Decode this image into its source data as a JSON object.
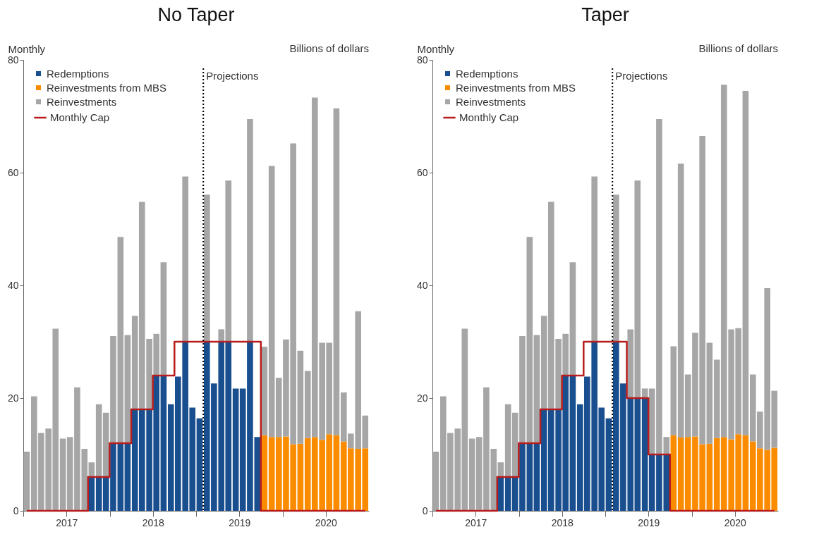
{
  "chart_data": [
    {
      "type": "bar",
      "title": "No Taper",
      "ylabel": "Monthly",
      "annotations": [
        "Billions of dollars"
      ],
      "x": [
        "2017-01-16",
        "2017-02-15",
        "2017-03-16",
        "2017-04-16",
        "2017-05-16",
        "2017-06-16",
        "2017-07-16",
        "2017-08-16",
        "2017-09-16",
        "2017-10-16",
        "2017-11-16",
        "2017-12-16",
        "2018-01-16",
        "2018-02-15",
        "2018-03-16",
        "2018-04-16",
        "2018-05-16",
        "2018-06-16",
        "2018-07-16",
        "2018-08-16",
        "2018-09-16",
        "2018-10-16",
        "2018-11-16",
        "2018-12-16",
        "2019-01-16",
        "2019-02-15",
        "2019-03-16",
        "2019-04-16",
        "2019-05-16",
        "2019-06-16",
        "2019-07-16",
        "2019-08-16",
        "2019-09-16",
        "2019-10-16",
        "2019-11-16",
        "2019-12-16",
        "2020-01-16",
        "2020-02-15",
        "2020-03-16",
        "2020-04-16",
        "2020-05-16",
        "2020-06-16",
        "2020-07-16",
        "2020-08-16",
        "2020-09-16",
        "2020-10-16",
        "2020-11-16",
        "2020-12-16"
      ],
      "xlim": [
        "2017-01",
        "2021-01"
      ],
      "xticks": [
        {
          "value": "2017-01",
          "label": null
        },
        {
          "value": "2017-07",
          "label": "2017"
        },
        {
          "value": "2018-01",
          "label": null
        },
        {
          "value": "2018-07",
          "label": "2018"
        },
        {
          "value": "2019-01",
          "label": null
        },
        {
          "value": "2019-07",
          "label": "2019"
        },
        {
          "value": "2020-01",
          "label": null
        },
        {
          "value": "2020-07",
          "label": "2020"
        }
      ],
      "ylim": [
        0,
        80
      ],
      "yticks": [
        0,
        20,
        40,
        60,
        80
      ],
      "stacked": true,
      "legend": "top left",
      "ref_lines": [
        {
          "axis": "x",
          "value": "2019-02",
          "label": "Projections",
          "color": "#000000",
          "line_style": "dotted"
        }
      ],
      "series": [
        {
          "name": "Redemptions",
          "color": "#1a4f8f",
          "values": [
            null,
            null,
            null,
            null,
            null,
            null,
            null,
            null,
            null,
            6,
            6,
            6,
            12,
            12,
            12,
            18,
            18,
            18,
            24,
            24,
            18.9,
            23.8,
            30,
            18.3,
            16.4,
            30,
            22.6,
            30,
            30,
            21.7,
            21.7,
            30,
            13.1,
            null,
            null,
            null,
            null,
            null,
            null,
            null,
            null,
            null,
            null,
            null,
            null,
            null,
            null,
            null
          ]
        },
        {
          "name": "Reinvestments from MBS",
          "color": "#fb8c00",
          "values": [
            null,
            null,
            null,
            null,
            null,
            null,
            null,
            null,
            null,
            null,
            null,
            null,
            null,
            null,
            null,
            null,
            null,
            null,
            null,
            null,
            null,
            null,
            null,
            null,
            null,
            null,
            null,
            null,
            null,
            null,
            null,
            null,
            null,
            13.4,
            13.1,
            13.1,
            13.2,
            11.8,
            11.9,
            12.9,
            13.1,
            12.6,
            13.6,
            13.4,
            12.3,
            11.1,
            11.0,
            11.1
          ]
        },
        {
          "name": "Reinvestments",
          "color": "#a6a6a6",
          "values": [
            10.5,
            20.3,
            13.8,
            14.6,
            32.3,
            12.8,
            13.1,
            21.9,
            11.0,
            2.6,
            12.9,
            11.4,
            19.0,
            36.6,
            19.2,
            16.6,
            36.8,
            12.5,
            7.4,
            20.1,
            null,
            null,
            29.3,
            null,
            null,
            26.1,
            null,
            2.2,
            28.6,
            null,
            null,
            39.5,
            null,
            15.7,
            48.1,
            10.5,
            17.2,
            53.4,
            16.5,
            11.9,
            60.2,
            17.2,
            16.2,
            58.0,
            8.7,
            2.6,
            24.4,
            5.8
          ]
        },
        {
          "name": "Monthly Cap",
          "type": "step",
          "color": "#b81c1c",
          "values": [
            0,
            0,
            0,
            0,
            0,
            0,
            0,
            0,
            0,
            6,
            6,
            6,
            12,
            12,
            12,
            18,
            18,
            18,
            24,
            24,
            24,
            30,
            30,
            30,
            30,
            30,
            30,
            30,
            30,
            30,
            30,
            30,
            30,
            0,
            0,
            0,
            0,
            0,
            0,
            0,
            0,
            0,
            0,
            0,
            0,
            0,
            0,
            0
          ]
        }
      ]
    },
    {
      "type": "bar",
      "title": "Taper",
      "ylabel": "Monthly",
      "annotations": [
        "Billions of dollars"
      ],
      "x": [
        "2017-01-16",
        "2017-02-15",
        "2017-03-16",
        "2017-04-16",
        "2017-05-16",
        "2017-06-16",
        "2017-07-16",
        "2017-08-16",
        "2017-09-16",
        "2017-10-16",
        "2017-11-16",
        "2017-12-16",
        "2018-01-16",
        "2018-02-15",
        "2018-03-16",
        "2018-04-16",
        "2018-05-16",
        "2018-06-16",
        "2018-07-16",
        "2018-08-16",
        "2018-09-16",
        "2018-10-16",
        "2018-11-16",
        "2018-12-16",
        "2019-01-16",
        "2019-02-15",
        "2019-03-16",
        "2019-04-16",
        "2019-05-16",
        "2019-06-16",
        "2019-07-16",
        "2019-08-16",
        "2019-09-16",
        "2019-10-16",
        "2019-11-16",
        "2019-12-16",
        "2020-01-16",
        "2020-02-15",
        "2020-03-16",
        "2020-04-16",
        "2020-05-16",
        "2020-06-16",
        "2020-07-16",
        "2020-08-16",
        "2020-09-16",
        "2020-10-16",
        "2020-11-16",
        "2020-12-16"
      ],
      "xlim": [
        "2017-01",
        "2021-01"
      ],
      "xticks": [
        {
          "value": "2017-01",
          "label": null
        },
        {
          "value": "2017-07",
          "label": "2017"
        },
        {
          "value": "2018-01",
          "label": null
        },
        {
          "value": "2018-07",
          "label": "2018"
        },
        {
          "value": "2019-01",
          "label": null
        },
        {
          "value": "2019-07",
          "label": "2019"
        },
        {
          "value": "2020-01",
          "label": null
        },
        {
          "value": "2020-07",
          "label": "2020"
        }
      ],
      "ylim": [
        0,
        80
      ],
      "yticks": [
        0,
        20,
        40,
        60,
        80
      ],
      "stacked": true,
      "legend": "top left",
      "ref_lines": [
        {
          "axis": "x",
          "value": "2019-02",
          "label": "Projections",
          "color": "#000000",
          "line_style": "dotted"
        }
      ],
      "series": [
        {
          "name": "Redemptions",
          "color": "#1a4f8f",
          "values": [
            null,
            null,
            null,
            null,
            null,
            null,
            null,
            null,
            null,
            6,
            6,
            6,
            12,
            12,
            12,
            18,
            18,
            18,
            24,
            24,
            18.9,
            23.8,
            30,
            18.3,
            16.4,
            30,
            22.6,
            20,
            20,
            20,
            10,
            10,
            10,
            null,
            null,
            null,
            null,
            null,
            null,
            null,
            null,
            null,
            null,
            null,
            null,
            null,
            null,
            null
          ]
        },
        {
          "name": "Reinvestments from MBS",
          "color": "#fb8c00",
          "values": [
            null,
            null,
            null,
            null,
            null,
            null,
            null,
            null,
            null,
            null,
            null,
            null,
            null,
            null,
            null,
            null,
            null,
            null,
            null,
            null,
            null,
            null,
            null,
            null,
            null,
            null,
            null,
            null,
            null,
            null,
            null,
            null,
            null,
            13.4,
            13.0,
            13.1,
            13.2,
            11.8,
            11.9,
            12.9,
            13.1,
            12.7,
            13.6,
            13.4,
            12.3,
            11.1,
            10.8,
            11.2
          ]
        },
        {
          "name": "Reinvestments",
          "color": "#a6a6a6",
          "values": [
            10.5,
            20.3,
            13.8,
            14.6,
            32.3,
            12.8,
            13.1,
            21.9,
            11.0,
            2.6,
            12.9,
            11.4,
            19.0,
            36.6,
            19.2,
            16.6,
            36.8,
            12.5,
            7.4,
            20.1,
            null,
            null,
            29.3,
            null,
            null,
            26.1,
            null,
            12.2,
            38.6,
            1.7,
            11.7,
            59.5,
            3.1,
            15.8,
            48.6,
            11.1,
            18.4,
            54.7,
            17.9,
            13.9,
            62.5,
            19.5,
            18.8,
            61.1,
            11.9,
            6.5,
            28.7,
            10.1
          ]
        },
        {
          "name": "Monthly Cap",
          "type": "step",
          "color": "#b81c1c",
          "values": [
            0,
            0,
            0,
            0,
            0,
            0,
            0,
            0,
            0,
            6,
            6,
            6,
            12,
            12,
            12,
            18,
            18,
            18,
            24,
            24,
            24,
            30,
            30,
            30,
            30,
            30,
            30,
            20,
            20,
            20,
            10,
            10,
            10,
            0,
            0,
            0,
            0,
            0,
            0,
            0,
            0,
            0,
            0,
            0,
            0,
            0,
            0,
            0
          ]
        }
      ]
    }
  ]
}
